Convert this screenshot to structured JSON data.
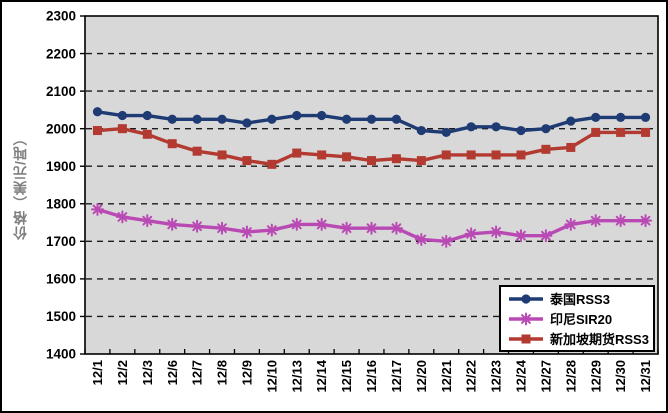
{
  "chart_data": {
    "type": "line",
    "title": "",
    "xlabel": "",
    "ylabel": "价格（美元/吨）",
    "ylim": [
      1400,
      2300
    ],
    "ytick_step": 100,
    "yticks": [
      1400,
      1500,
      1600,
      1700,
      1800,
      1900,
      2000,
      2100,
      2200,
      2300
    ],
    "grid": "horizontal-dashed",
    "plot_bg_color": "#D8D8D8",
    "gridline_color": "#1A1A1A",
    "legend_position": "bottom-right-inside",
    "categories": [
      "12/1",
      "12/2",
      "12/3",
      "12/6",
      "12/7",
      "12/8",
      "12/9",
      "12/10",
      "12/13",
      "12/14",
      "12/15",
      "12/16",
      "12/17",
      "12/20",
      "12/21",
      "12/22",
      "12/23",
      "12/24",
      "12/27",
      "12/28",
      "12/29",
      "12/30",
      "12/31"
    ],
    "series": [
      {
        "name": "泰国RSS3",
        "color": "#1F3B73",
        "marker": "circle",
        "values": [
          2045,
          2035,
          2035,
          2025,
          2025,
          2025,
          2015,
          2025,
          2035,
          2035,
          2025,
          2025,
          2025,
          1995,
          1990,
          2005,
          2005,
          1995,
          2000,
          2020,
          2030,
          2030,
          2030
        ]
      },
      {
        "name": "印尼SIR20",
        "color": "#B94AB4",
        "marker": "star",
        "values": [
          1785,
          1765,
          1755,
          1745,
          1740,
          1735,
          1725,
          1730,
          1745,
          1745,
          1735,
          1735,
          1735,
          1705,
          1700,
          1720,
          1725,
          1715,
          1715,
          1745,
          1755,
          1755,
          1755
        ]
      },
      {
        "name": "新加坡期货RSS3",
        "color": "#B23A30",
        "marker": "square",
        "values": [
          1995,
          2000,
          1985,
          1960,
          1940,
          1930,
          1915,
          1905,
          1935,
          1930,
          1925,
          1915,
          1920,
          1915,
          1930,
          1930,
          1930,
          1930,
          1945,
          1950,
          1990,
          1990,
          1990
        ]
      }
    ]
  }
}
